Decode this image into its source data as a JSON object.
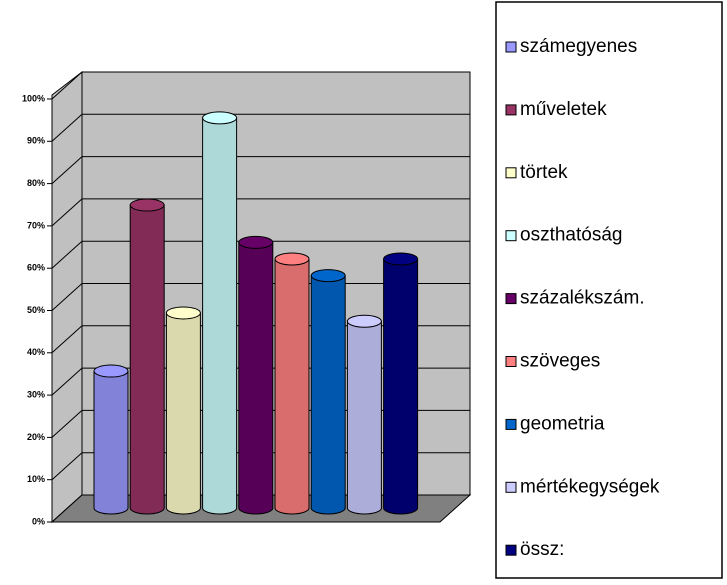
{
  "chart_data": {
    "type": "bar3d-cylinder",
    "categories": [
      null
    ],
    "series": [
      {
        "name": "számegyenes",
        "color": "#9999ff",
        "values": [
          33
        ]
      },
      {
        "name": "műveletek",
        "color": "#993366",
        "values": [
          73
        ]
      },
      {
        "name": "törtek",
        "color": "#ffffcc",
        "values": [
          47
        ]
      },
      {
        "name": "oszthatóság",
        "color": "#ccffff",
        "values": [
          94
        ]
      },
      {
        "name": "százalékszám.",
        "color": "#660066",
        "values": [
          64
        ]
      },
      {
        "name": "szöveges",
        "color": "#ff8080",
        "values": [
          60
        ]
      },
      {
        "name": "geometria",
        "color": "#0066cc",
        "values": [
          56
        ]
      },
      {
        "name": "mértékegységek",
        "color": "#ccccff",
        "values": [
          45
        ]
      },
      {
        "name": "össz:",
        "color": "#000080",
        "values": [
          60
        ]
      }
    ],
    "ylim": [
      0,
      100
    ],
    "yticks": [
      {
        "value": 0,
        "label": "0%"
      },
      {
        "value": 10,
        "label": "10%"
      },
      {
        "value": 20,
        "label": "20%"
      },
      {
        "value": 30,
        "label": "30%"
      },
      {
        "value": 40,
        "label": "40%"
      },
      {
        "value": 50,
        "label": "50%"
      },
      {
        "value": 60,
        "label": "60%"
      },
      {
        "value": 70,
        "label": "70%"
      },
      {
        "value": 80,
        "label": "80%"
      },
      {
        "value": 90,
        "label": "90%"
      },
      {
        "value": 100,
        "label": "100%"
      }
    ],
    "grid": true,
    "legend": "right"
  }
}
